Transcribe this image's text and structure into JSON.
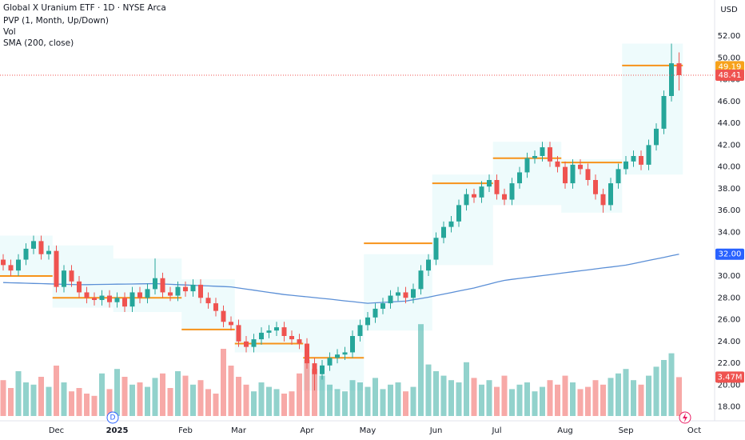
{
  "chart_data": {
    "type": "candlestick",
    "title": "Global X Uranium ETF · 1D · NYSE Arca",
    "currency": "USD",
    "categories": [
      null,
      null,
      null,
      null,
      null,
      null,
      null,
      "Dec",
      null,
      null,
      null,
      null,
      null,
      null,
      null,
      "2025",
      null,
      null,
      null,
      null,
      null,
      null,
      null,
      null,
      "Feb",
      null,
      null,
      null,
      null,
      null,
      null,
      "Mar",
      null,
      null,
      null,
      null,
      null,
      null,
      null,
      null,
      "Apr",
      null,
      null,
      null,
      null,
      null,
      null,
      null,
      "May",
      null,
      null,
      null,
      null,
      null,
      null,
      null,
      null,
      "Jun",
      null,
      null,
      null,
      null,
      null,
      null,
      null,
      "Jul",
      null,
      null,
      null,
      null,
      null,
      null,
      null,
      null,
      "Aug",
      null,
      null,
      null,
      null,
      null,
      null,
      null,
      "Sep",
      null,
      null,
      null,
      null,
      null,
      null,
      null,
      null,
      "Oct"
    ],
    "open": [
      31.5,
      31.0,
      30.5,
      31.5,
      32.5,
      33.2,
      32.0,
      32.3,
      29.0,
      30.5,
      29.5,
      28.5,
      28.0,
      27.8,
      28.2,
      27.6,
      28.0,
      27.2,
      28.5,
      28.0,
      28.8,
      29.8,
      28.5,
      28.2,
      29.0,
      28.6,
      29.2,
      28.0,
      27.5,
      26.8,
      25.8,
      25.5,
      24.0,
      23.5,
      24.2,
      24.8,
      25.0,
      25.3,
      24.5,
      24.2,
      23.8,
      22.0,
      21.0,
      21.8,
      22.5,
      22.8,
      23.0,
      24.5,
      25.5,
      26.2,
      27.0,
      27.5,
      28.2,
      28.5,
      28.0,
      28.8,
      30.5,
      31.5,
      33.5,
      34.5,
      35.0,
      36.5,
      37.5,
      37.2,
      38.2,
      38.8,
      37.5,
      37.0,
      38.5,
      39.5,
      40.8,
      41.0,
      41.8,
      40.5,
      40.0,
      38.5,
      40.2,
      39.8,
      38.8,
      37.5,
      36.5,
      38.5,
      39.8,
      40.5,
      41.0,
      40.2,
      42.0,
      43.5,
      46.5,
      49.5,
      null,
      null
    ],
    "high": [
      32.0,
      31.5,
      32.0,
      33.0,
      33.7,
      33.7,
      32.8,
      32.8,
      31.0,
      31.0,
      30.0,
      29.0,
      28.5,
      28.7,
      28.7,
      28.5,
      28.5,
      29.0,
      29.0,
      29.3,
      31.6,
      30.3,
      29.0,
      29.5,
      29.5,
      29.7,
      29.7,
      28.5,
      28.0,
      27.3,
      26.3,
      26.0,
      24.5,
      24.7,
      25.3,
      25.5,
      25.8,
      25.8,
      25.0,
      24.7,
      24.3,
      22.5,
      22.3,
      23.0,
      23.3,
      23.5,
      25.0,
      26.0,
      26.7,
      27.5,
      28.0,
      28.7,
      29.0,
      29.0,
      29.3,
      31.0,
      32.0,
      34.0,
      35.0,
      35.5,
      37.0,
      38.0,
      38.0,
      38.7,
      39.3,
      39.3,
      38.0,
      39.0,
      40.0,
      41.3,
      41.5,
      42.3,
      42.3,
      41.0,
      40.5,
      40.7,
      40.7,
      40.3,
      39.3,
      38.0,
      39.0,
      40.3,
      41.0,
      41.5,
      41.5,
      42.5,
      44.0,
      47.0,
      51.3,
      50.5,
      null,
      null
    ],
    "low": [
      30.5,
      30.0,
      30.0,
      31.0,
      32.0,
      31.5,
      31.5,
      28.5,
      28.5,
      29.0,
      28.0,
      27.5,
      27.3,
      27.3,
      27.1,
      27.1,
      26.7,
      26.7,
      27.5,
      27.5,
      28.3,
      28.0,
      27.7,
      27.7,
      28.1,
      28.1,
      27.5,
      27.0,
      26.3,
      25.3,
      25.0,
      23.5,
      23.0,
      23.0,
      23.7,
      24.3,
      24.5,
      24.0,
      23.7,
      23.3,
      21.5,
      19.5,
      20.5,
      21.3,
      22.0,
      22.3,
      22.5,
      24.0,
      25.0,
      25.7,
      26.5,
      27.0,
      27.7,
      27.5,
      27.5,
      28.3,
      30.0,
      31.0,
      33.0,
      34.0,
      34.5,
      36.0,
      36.7,
      36.7,
      37.7,
      37.0,
      36.5,
      36.5,
      38.0,
      39.0,
      40.3,
      40.5,
      40.0,
      39.5,
      38.0,
      38.0,
      39.3,
      38.3,
      37.0,
      35.8,
      36.0,
      38.0,
      39.3,
      40.0,
      39.7,
      39.7,
      41.5,
      43.0,
      46.0,
      47.0,
      null,
      null
    ],
    "close": [
      31.0,
      30.5,
      31.5,
      32.5,
      33.2,
      32.0,
      32.3,
      29.0,
      30.5,
      29.5,
      28.5,
      28.0,
      27.8,
      28.2,
      27.6,
      28.0,
      27.2,
      28.5,
      28.0,
      28.8,
      29.8,
      28.5,
      28.2,
      29.0,
      28.6,
      29.2,
      28.0,
      27.5,
      26.8,
      25.8,
      25.5,
      24.0,
      23.5,
      24.2,
      24.8,
      25.0,
      25.3,
      24.5,
      24.2,
      23.8,
      22.0,
      21.0,
      21.8,
      22.5,
      22.8,
      23.0,
      24.5,
      25.5,
      26.2,
      27.0,
      27.5,
      28.2,
      28.5,
      28.0,
      28.8,
      30.5,
      31.5,
      33.5,
      34.5,
      35.0,
      36.5,
      37.5,
      37.2,
      38.2,
      38.8,
      37.5,
      37.0,
      38.5,
      39.5,
      40.8,
      41.0,
      41.8,
      40.5,
      40.0,
      38.5,
      40.2,
      39.8,
      38.8,
      37.5,
      36.5,
      38.5,
      39.8,
      40.5,
      41.0,
      40.2,
      42.0,
      43.5,
      46.5,
      49.5,
      48.41,
      null,
      null
    ],
    "volume_name": "Vol",
    "volume": [
      3.2,
      2.5,
      4.0,
      3.0,
      2.8,
      3.5,
      2.6,
      4.5,
      3.0,
      2.2,
      2.5,
      2.0,
      1.8,
      3.8,
      2.4,
      4.2,
      3.5,
      2.8,
      3.0,
      2.6,
      3.4,
      3.8,
      2.5,
      4.0,
      3.6,
      2.8,
      3.2,
      2.4,
      2.0,
      6.0,
      4.5,
      3.5,
      2.8,
      2.2,
      3.0,
      2.6,
      2.4,
      2.0,
      2.2,
      3.8,
      5.0,
      4.2,
      3.6,
      2.8,
      2.4,
      2.2,
      3.2,
      3.0,
      2.6,
      3.4,
      2.4,
      2.8,
      3.0,
      2.2,
      2.6,
      8.2,
      4.6,
      4.0,
      3.6,
      3.2,
      3.0,
      4.8,
      3.4,
      2.8,
      3.2,
      2.6,
      3.6,
      2.4,
      2.8,
      3.0,
      2.2,
      2.6,
      3.2,
      2.8,
      3.6,
      3.0,
      2.4,
      2.6,
      3.2,
      2.8,
      3.4,
      3.8,
      4.2,
      3.2,
      2.8,
      3.6,
      4.4,
      5.0,
      5.6,
      3.47,
      null,
      null
    ],
    "volume_marker": {
      "value": 3.47,
      "label": "3.47M"
    },
    "sma": {
      "name": "SMA (200, close)",
      "color": "#5b8fd6",
      "values": [
        29.4,
        29.38,
        29.36,
        29.34,
        29.32,
        29.3,
        29.28,
        29.26,
        29.24,
        29.22,
        29.2,
        29.21,
        29.22,
        29.23,
        29.24,
        29.25,
        29.26,
        29.27,
        29.28,
        29.29,
        29.3,
        29.27,
        29.24,
        29.21,
        29.18,
        29.15,
        29.12,
        29.09,
        29.06,
        29.03,
        29.0,
        28.9,
        28.8,
        28.7,
        28.6,
        28.5,
        28.4,
        28.3,
        28.23,
        28.16,
        28.09,
        28.02,
        27.95,
        27.88,
        27.8,
        27.72,
        27.65,
        27.57,
        27.5,
        27.54,
        27.58,
        27.62,
        27.66,
        27.7,
        27.82,
        27.94,
        28.06,
        28.2,
        28.34,
        28.48,
        28.62,
        28.76,
        28.9,
        29.08,
        29.26,
        29.44,
        29.6,
        29.69,
        29.78,
        29.86,
        29.95,
        30.04,
        30.12,
        30.21,
        30.3,
        30.39,
        30.48,
        30.56,
        30.65,
        30.74,
        30.82,
        30.91,
        31.0,
        31.14,
        31.28,
        31.43,
        31.57,
        31.71,
        31.86,
        32.0,
        null,
        null
      ]
    },
    "profile": {
      "name": "PVP (1, Month, Up/Down)",
      "color": "#f7931a",
      "values": [
        30.0,
        28.0,
        28.0,
        25.1,
        23.8,
        22.5,
        33.0,
        38.5,
        40.8,
        40.4,
        49.3
      ]
    },
    "up_color": "#26a69a",
    "down_color": "#ef5350",
    "ylim": [
      16.8,
      55.3
    ],
    "yticks": [
      {
        "value": 18,
        "label": "18.00"
      },
      {
        "value": 20,
        "label": "20.00"
      },
      {
        "value": 22,
        "label": "22.00"
      },
      {
        "value": 24,
        "label": "24.00"
      },
      {
        "value": 26,
        "label": "26.00"
      },
      {
        "value": 28,
        "label": "28.00"
      },
      {
        "value": 30,
        "label": "30.00"
      },
      {
        "value": 32,
        "label": "32.00"
      },
      {
        "value": 34,
        "label": "34.00"
      },
      {
        "value": 36,
        "label": "36.00"
      },
      {
        "value": 38,
        "label": "38.00"
      },
      {
        "value": 40,
        "label": "40.00"
      },
      {
        "value": 42,
        "label": "42.00"
      },
      {
        "value": 44,
        "label": "44.00"
      },
      {
        "value": 46,
        "label": "46.00"
      },
      {
        "value": 48,
        "label": "48.00"
      },
      {
        "value": 50,
        "label": "50.00"
      },
      {
        "value": 52,
        "label": "52.00"
      }
    ],
    "markers": [
      {
        "value": 49.19,
        "color": "#f7a21b"
      },
      {
        "value": 48.41,
        "color": "#ef5350"
      },
      {
        "value": 32,
        "label": "32.00",
        "color": "#2962ff"
      }
    ],
    "event": "D",
    "grid": false
  }
}
